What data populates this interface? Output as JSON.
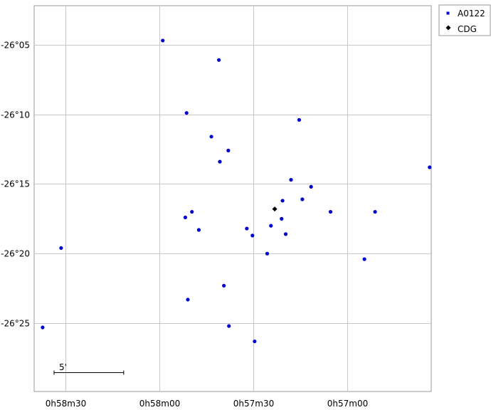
{
  "chart_data": {
    "type": "scatter",
    "title": "",
    "xlabel": "",
    "ylabel": "",
    "grid": true,
    "legend_position": "top-right outside",
    "x_unit": "RA seconds of time (0h57m00s = 3420)",
    "y_unit": "Dec arcminutes",
    "xlim": [
      3519.9,
      3393.3
    ],
    "ylim": [
      -1589.9,
      -1562.2
    ],
    "x_ticks": [
      {
        "value": 3510,
        "label": "0h58m30"
      },
      {
        "value": 3480,
        "label": "0h58m00"
      },
      {
        "value": 3450,
        "label": "0h57m30"
      },
      {
        "value": 3420,
        "label": "0h57m00"
      }
    ],
    "y_ticks": [
      {
        "value": -1565,
        "label": "-26°05"
      },
      {
        "value": -1570,
        "label": "-26°10"
      },
      {
        "value": -1575,
        "label": "-26°15"
      },
      {
        "value": -1580,
        "label": "-26°20"
      },
      {
        "value": -1585,
        "label": "-26°25"
      }
    ],
    "scale_bar": {
      "label": "5'",
      "arcmin": 5
    },
    "series": [
      {
        "name": "A0122",
        "color": "#0000cc",
        "marker": "circle",
        "points": [
          {
            "x": 3478.9,
            "y": -1564.7
          },
          {
            "x": 3461.0,
            "y": -1566.1
          },
          {
            "x": 3471.3,
            "y": -1569.9
          },
          {
            "x": 3463.4,
            "y": -1571.6
          },
          {
            "x": 3458.0,
            "y": -1572.6
          },
          {
            "x": 3460.7,
            "y": -1573.4
          },
          {
            "x": 3435.4,
            "y": -1570.4
          },
          {
            "x": 3393.8,
            "y": -1573.8
          },
          {
            "x": 3438.0,
            "y": -1574.7
          },
          {
            "x": 3431.6,
            "y": -1575.2
          },
          {
            "x": 3440.7,
            "y": -1576.2
          },
          {
            "x": 3434.4,
            "y": -1576.1
          },
          {
            "x": 3425.4,
            "y": -1577.0
          },
          {
            "x": 3411.2,
            "y": -1577.0
          },
          {
            "x": 3469.6,
            "y": -1577.0
          },
          {
            "x": 3471.7,
            "y": -1577.4
          },
          {
            "x": 3441.0,
            "y": -1577.5
          },
          {
            "x": 3467.4,
            "y": -1578.3
          },
          {
            "x": 3452.1,
            "y": -1578.2
          },
          {
            "x": 3450.3,
            "y": -1578.7
          },
          {
            "x": 3444.4,
            "y": -1578.0
          },
          {
            "x": 3439.7,
            "y": -1578.6
          },
          {
            "x": 3445.6,
            "y": -1580.0
          },
          {
            "x": 3414.6,
            "y": -1580.4
          },
          {
            "x": 3511.3,
            "y": -1579.6
          },
          {
            "x": 3459.4,
            "y": -1582.3
          },
          {
            "x": 3470.9,
            "y": -1583.3
          },
          {
            "x": 3457.8,
            "y": -1585.2
          },
          {
            "x": 3517.2,
            "y": -1585.3
          },
          {
            "x": 3449.6,
            "y": -1586.3
          }
        ]
      },
      {
        "name": "CDG",
        "color": "#000000",
        "marker": "diamond",
        "points": [
          {
            "x": 3443.2,
            "y": -1576.8
          }
        ]
      }
    ]
  }
}
